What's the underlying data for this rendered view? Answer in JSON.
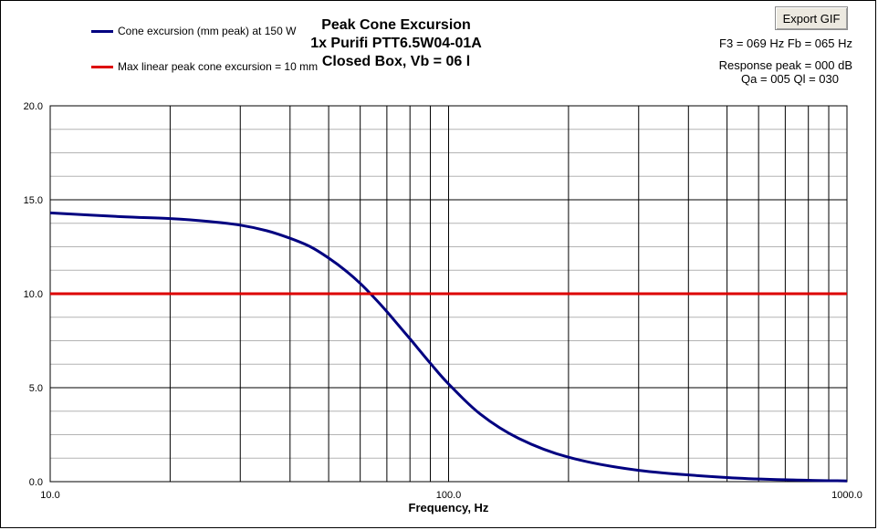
{
  "title_lines": [
    "Peak Cone Excursion",
    "1x Purifi PTT6.5W04-01A",
    "Closed Box, Vb = 06 l"
  ],
  "export_button": "Export GIF",
  "info": {
    "line1": "F3 = 069 Hz  Fb = 065 Hz",
    "line2": "Response peak = 000 dB",
    "line3": "Qa = 005  Ql = 030"
  },
  "colors": {
    "excursion": "#000080",
    "limit": "#dd0000",
    "grid": "#000000"
  },
  "chart_data": {
    "type": "line",
    "x_scale": "log",
    "xlim": [
      10,
      1000
    ],
    "ylim": [
      0,
      20
    ],
    "xlabel": "Frequency, Hz",
    "ylabel": "",
    "grid": true,
    "legend_placement": "top-left",
    "x_tick_labels": [
      {
        "value": 10,
        "label": "10.0"
      },
      {
        "value": 100,
        "label": "100.0"
      },
      {
        "value": 1000,
        "label": "1000.0"
      }
    ],
    "y_tick_labels": [
      {
        "value": 0,
        "label": "0.0"
      },
      {
        "value": 5,
        "label": "5.0"
      },
      {
        "value": 10,
        "label": "10.0"
      },
      {
        "value": 15,
        "label": "15.0"
      },
      {
        "value": 20,
        "label": "20.0"
      }
    ],
    "series": [
      {
        "name": "Cone excursion (mm peak) at 150 W",
        "x": [
          10,
          15,
          20,
          25,
          30,
          35,
          40,
          45,
          50,
          55,
          60,
          65,
          70,
          75,
          80,
          90,
          100,
          120,
          150,
          200,
          300,
          500,
          700,
          1000
        ],
        "y": [
          14.3,
          14.1,
          14.0,
          13.85,
          13.65,
          13.35,
          12.95,
          12.5,
          11.9,
          11.25,
          10.55,
          9.8,
          9.05,
          8.3,
          7.6,
          6.3,
          5.2,
          3.6,
          2.3,
          1.3,
          0.6,
          0.22,
          0.1,
          0.04
        ]
      },
      {
        "name": "Max linear peak cone excursion = 10 mm",
        "x": [
          10,
          1000
        ],
        "y": [
          10,
          10
        ]
      }
    ]
  }
}
